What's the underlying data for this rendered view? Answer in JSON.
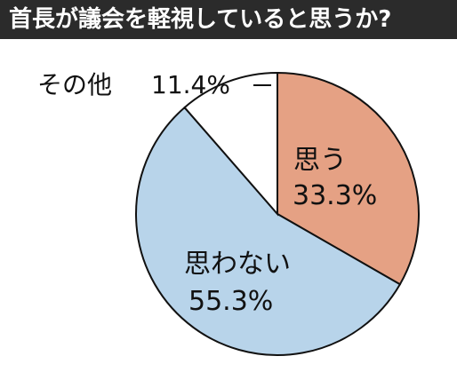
{
  "title": "首長が議会を軽視していると思うか?",
  "colors": {
    "title_bg": "#2b2b2b",
    "title_text": "#ffffff",
    "yes": "#e5a184",
    "no": "#b8d4ea",
    "other": "#ffffff",
    "outline": "#111111"
  },
  "chart_data": {
    "type": "pie",
    "title": "首長が議会を軽視していると思うか?",
    "start": "12 o'clock",
    "direction": "clockwise",
    "slices": [
      {
        "key": "yes",
        "name": "思う",
        "value": 33.3,
        "value_label": "33.3%",
        "color": "#e5a184"
      },
      {
        "key": "no",
        "name": "思わない",
        "value": 55.3,
        "value_label": "55.3%",
        "color": "#b8d4ea"
      },
      {
        "key": "other",
        "name": "その他",
        "value": 11.4,
        "value_label": "11.4%",
        "color": "#ffffff"
      }
    ]
  }
}
